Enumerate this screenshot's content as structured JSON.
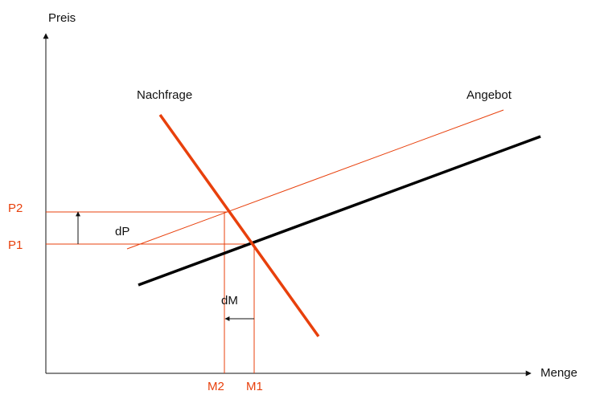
{
  "labels": {
    "y_axis": "Preis",
    "x_axis": "Menge",
    "demand": "Nachfrage",
    "supply": "Angebot",
    "price_change": "dP",
    "quantity_change": "dM",
    "p1": "P1",
    "p2": "P2",
    "m1": "M1",
    "m2": "M2"
  },
  "colors": {
    "axis": "#111111",
    "accent": "#e8400c",
    "supply_original": "#000000",
    "guide": "#e8400c"
  }
}
